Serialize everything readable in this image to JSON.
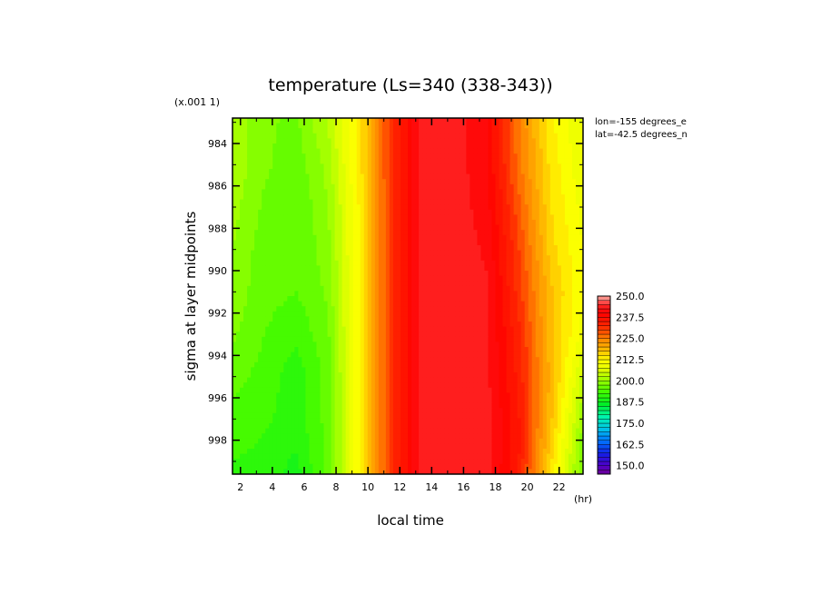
{
  "chart_data": {
    "type": "heatmap",
    "title": "temperature (Ls=340 (338-343))",
    "xlabel": "local time",
    "x_unit": "(hr)",
    "ylabel": "sigma at layer midpoints",
    "y_scale_note": "(x.001 1)",
    "x_ticks": [
      "2",
      "4",
      "6",
      "8",
      "10",
      "12",
      "14",
      "16",
      "18",
      "20",
      "22"
    ],
    "y_ticks": [
      "984",
      "986",
      "988",
      "990",
      "992",
      "994",
      "996",
      "998"
    ],
    "xlim": [
      1.5,
      23.5
    ],
    "ylim": [
      982.8,
      999.6
    ],
    "y_inverted": true,
    "location_notes": [
      "lon=-155 degrees_e",
      "lat=-42.5 degrees_n"
    ],
    "colorbar": {
      "labels": [
        "250.0",
        "237.5",
        "225.0",
        "212.5",
        "200.0",
        "187.5",
        "175.0",
        "162.5",
        "150.0"
      ],
      "range": [
        145,
        250
      ],
      "step": 2.5
    },
    "x_hours": [
      1.5,
      3.5,
      5.5,
      7.5,
      9.5,
      11.5,
      13.5,
      15.5,
      17.5,
      19.5,
      21.5,
      23.5
    ],
    "sigma_levels": [
      982.8,
      985,
      987,
      989,
      991,
      993,
      995,
      997,
      998.5,
      999.6
    ],
    "temperature_K": [
      [
        202,
        198,
        197,
        203,
        214,
        232,
        244,
        244,
        240,
        225,
        213,
        207
      ],
      [
        202,
        198,
        196,
        201,
        214,
        232,
        244,
        244,
        240,
        226,
        214,
        208
      ],
      [
        201,
        197,
        195,
        200,
        213,
        232,
        244,
        244,
        241,
        228,
        215,
        209
      ],
      [
        200,
        196,
        195,
        199,
        213,
        232,
        244,
        244,
        242,
        230,
        216,
        210
      ],
      [
        199,
        196,
        195,
        198,
        213,
        232,
        244,
        244,
        243,
        231,
        218,
        210
      ],
      [
        198,
        195,
        193,
        197,
        213,
        232,
        244,
        244,
        243,
        233,
        218,
        209
      ],
      [
        196,
        194,
        191,
        196,
        213,
        232,
        244,
        244,
        243,
        234,
        219,
        204
      ],
      [
        194,
        193,
        191,
        196,
        213,
        232,
        244,
        245,
        244,
        235,
        218,
        200
      ],
      [
        193,
        192,
        190,
        196,
        213,
        232,
        244,
        245,
        244,
        235,
        216,
        198
      ],
      [
        192,
        191,
        189,
        196,
        213,
        232,
        244,
        245,
        244,
        234,
        214,
        197
      ]
    ]
  }
}
